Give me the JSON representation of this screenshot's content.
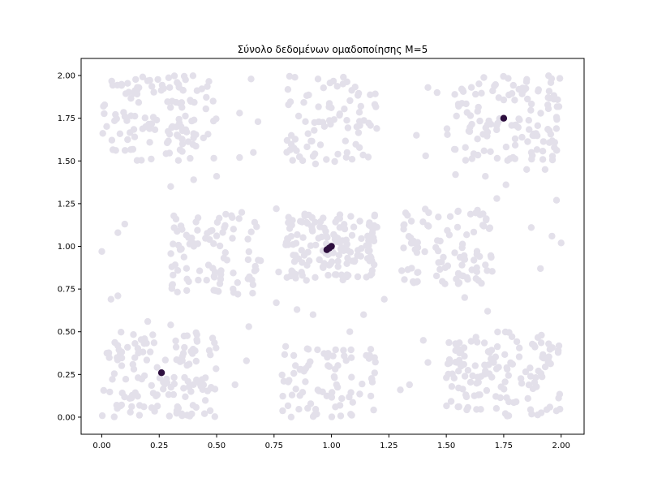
{
  "chart_data": {
    "type": "scatter",
    "title": "Σύνολο δεδομένων ομαδοποίησης M=5",
    "xlabel": "",
    "ylabel": "",
    "xlim": [
      -0.09,
      2.1
    ],
    "ylim": [
      -0.1,
      2.1
    ],
    "x_ticks": [
      0.0,
      0.25,
      0.5,
      0.75,
      1.0,
      1.25,
      1.5,
      1.75,
      2.0
    ],
    "y_ticks": [
      0.0,
      0.25,
      0.5,
      0.75,
      1.0,
      1.25,
      1.5,
      1.75,
      2.0
    ],
    "x_tick_labels": [
      "0.00",
      "0.25",
      "0.50",
      "0.75",
      "1.00",
      "1.25",
      "1.50",
      "1.75",
      "2.00"
    ],
    "y_tick_labels": [
      "0.00",
      "0.25",
      "0.50",
      "0.75",
      "1.00",
      "1.25",
      "1.50",
      "1.75",
      "2.00"
    ],
    "grid": false,
    "legend": "none",
    "colors": {
      "data_points": "#e3e0ea",
      "centers": "#2e0f3f",
      "axes": "#000000"
    },
    "clusters": [
      {
        "center_x": 0.25,
        "center_y": 1.75,
        "x_range": [
          0.0,
          0.5
        ],
        "y_range": [
          1.5,
          2.0
        ],
        "count": 130
      },
      {
        "center_x": 1.0,
        "center_y": 1.75,
        "x_range": [
          0.8,
          1.2
        ],
        "y_range": [
          1.48,
          2.0
        ],
        "count": 85
      },
      {
        "center_x": 1.75,
        "center_y": 1.75,
        "x_range": [
          1.5,
          2.0
        ],
        "y_range": [
          1.5,
          2.0
        ],
        "count": 130
      },
      {
        "center_x": 0.5,
        "center_y": 1.0,
        "x_range": [
          0.3,
          0.7
        ],
        "y_range": [
          0.72,
          1.22
        ],
        "count": 95
      },
      {
        "center_x": 1.0,
        "center_y": 1.0,
        "x_range": [
          0.8,
          1.2
        ],
        "y_range": [
          0.8,
          1.2
        ],
        "count": 150
      },
      {
        "center_x": 1.5,
        "center_y": 1.0,
        "x_range": [
          1.3,
          1.7
        ],
        "y_range": [
          0.78,
          1.22
        ],
        "count": 95
      },
      {
        "center_x": 0.25,
        "center_y": 0.25,
        "x_range": [
          0.0,
          0.5
        ],
        "y_range": [
          0.0,
          0.5
        ],
        "count": 140
      },
      {
        "center_x": 1.0,
        "center_y": 0.25,
        "x_range": [
          0.78,
          1.2
        ],
        "y_range": [
          0.0,
          0.42
        ],
        "count": 85
      },
      {
        "center_x": 1.75,
        "center_y": 0.25,
        "x_range": [
          1.5,
          2.0
        ],
        "y_range": [
          0.0,
          0.5
        ],
        "count": 140
      }
    ],
    "scattered_points": [
      [
        0.65,
        1.98
      ],
      [
        0.6,
        1.78
      ],
      [
        0.68,
        1.73
      ],
      [
        0.6,
        1.52
      ],
      [
        0.66,
        1.55
      ],
      [
        0.3,
        1.35
      ],
      [
        0.4,
        1.39
      ],
      [
        0.5,
        1.41
      ],
      [
        1.42,
        1.93
      ],
      [
        1.46,
        1.9
      ],
      [
        1.37,
        1.65
      ],
      [
        1.41,
        1.53
      ],
      [
        1.54,
        1.42
      ],
      [
        1.67,
        1.41
      ],
      [
        1.76,
        1.36
      ],
      [
        1.85,
        1.45
      ],
      [
        1.93,
        1.45
      ],
      [
        1.98,
        1.27
      ],
      [
        1.72,
        1.28
      ],
      [
        1.66,
        1.19
      ],
      [
        0.0,
        0.97
      ],
      [
        0.07,
        1.08
      ],
      [
        0.1,
        1.13
      ],
      [
        0.07,
        0.71
      ],
      [
        0.04,
        0.69
      ],
      [
        0.76,
        1.22
      ],
      [
        0.77,
        0.85
      ],
      [
        0.76,
        0.67
      ],
      [
        0.85,
        0.63
      ],
      [
        0.92,
        0.6
      ],
      [
        1.08,
        0.5
      ],
      [
        1.14,
        0.6
      ],
      [
        1.23,
        0.69
      ],
      [
        1.4,
        0.45
      ],
      [
        1.42,
        0.32
      ],
      [
        1.34,
        0.19
      ],
      [
        1.3,
        0.16
      ],
      [
        1.68,
        0.62
      ],
      [
        1.58,
        0.7
      ],
      [
        1.91,
        0.87
      ],
      [
        1.87,
        1.11
      ],
      [
        1.96,
        1.06
      ],
      [
        2.0,
        1.02
      ],
      [
        0.58,
        0.19
      ],
      [
        0.63,
        0.33
      ],
      [
        0.64,
        0.53
      ],
      [
        0.2,
        0.56
      ],
      [
        0.3,
        0.54
      ]
    ],
    "centers": [
      {
        "x": 0.26,
        "y": 0.26
      },
      {
        "x": 1.75,
        "y": 1.75
      },
      {
        "x": 0.98,
        "y": 0.98
      },
      {
        "x": 0.99,
        "y": 0.99
      },
      {
        "x": 1.0,
        "y": 1.0
      }
    ]
  }
}
